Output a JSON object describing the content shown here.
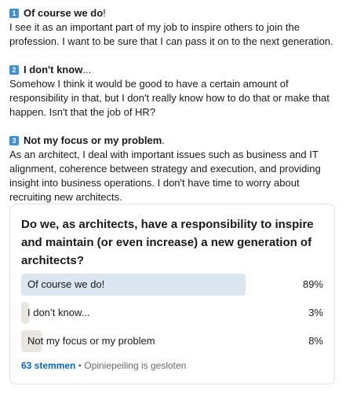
{
  "post": {
    "options": [
      {
        "number": "1",
        "title": "Of course we do",
        "suffix": "!",
        "text": "I see it as an important part of my job to inspire others to join the profession. I want to be sure that I can pass it on to the next generation."
      },
      {
        "number": "2",
        "title": "I don't know",
        "suffix": "...",
        "text": "Somehow I think it would be good to have a certain amount of responsibility in that, but I don't really know how to do that or make that happen. Isn't that the job of HR?"
      },
      {
        "number": "3",
        "title": "Not my focus or my problem",
        "suffix": ".",
        "text": "As an architect, I deal with important issues such as business and IT alignment, coherence between strategy and execution, and providing insight into business operations. I don't have time to worry about recruiting new architects."
      }
    ]
  },
  "poll": {
    "question": "Do we, as architects, have a responsibility to inspire and maintain (or even increase) a new generation of architects?",
    "results": [
      {
        "label": "Of course we do!",
        "percent_label": "89%",
        "percent": 89,
        "winner": true
      },
      {
        "label": "I don’t know...",
        "percent_label": "3%",
        "percent": 3,
        "winner": false
      },
      {
        "label": "Not my focus or my problem",
        "percent_label": "8%",
        "percent": 8,
        "winner": false
      }
    ],
    "votes": "63 stemmen",
    "separator": " • ",
    "status": "Opiniepeiling is gesloten"
  },
  "colors": {
    "badge": "#3d8fd6",
    "winner_bar": "#dce6f1",
    "other_bar": "#e9e5df",
    "link": "#0a66c2"
  }
}
